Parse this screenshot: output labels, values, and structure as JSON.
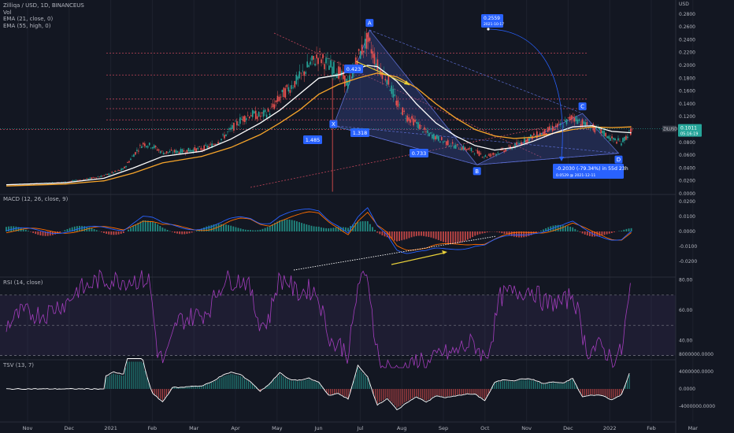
{
  "header": {
    "symbol_line": "Zilliqa / USD, 1D, BINANCEUS",
    "vol_label": "Vol",
    "ema21_label": "EMA (21, close, 0)",
    "ema55_label": "EMA (55, high, 0)",
    "currency": "USD"
  },
  "colors": {
    "background": "#131722",
    "candle_up": "#26a69a",
    "candle_down": "#ef5350",
    "ema21": "#ffffff",
    "ema55": "#f7a52a",
    "pattern_fill": "#3b4d9e",
    "pattern_line": "#5b6cd0",
    "macd_line": "#2962ff",
    "signal_line": "#ff6d00",
    "rsi_line": "#a33dbd",
    "tsv_line": "#ffffff",
    "label_bg": "#2962ff",
    "price_tag": "#26a69a",
    "arrow_yellow": "#e8d03a"
  },
  "chart_data": {
    "type": "candlestick",
    "title": "Zilliqa / USD, 1D, BINANCEUS",
    "x_ticks": [
      "Nov",
      "Dec",
      "2021",
      "Feb",
      "Mar",
      "Apr",
      "May",
      "Jun",
      "Jul",
      "Aug",
      "Sep",
      "Oct",
      "Nov",
      "Dec",
      "2022",
      "Feb",
      "Mar"
    ],
    "price_axis": {
      "ticks": [
        0.28,
        0.26,
        0.24,
        0.22,
        0.2,
        0.18,
        0.16,
        0.14,
        0.12,
        0.1,
        0.08,
        0.06,
        0.04,
        0.02,
        0.0
      ],
      "tick_labels": [
        "0.2800",
        "0.2600",
        "0.2400",
        "0.2200",
        "0.2000",
        "0.1800",
        "0.1600",
        "0.1400",
        "0.1200",
        "0.1000",
        "0.0800",
        "0.0600",
        "0.0400",
        "0.0200",
        "0.0000"
      ],
      "ylim": [
        0,
        0.3
      ]
    },
    "current_price": {
      "value": "0.1011",
      "countdown": "05:16:19",
      "symbol_tag": "ZILUSD"
    },
    "approx_closes": [
      [
        0,
        0.014
      ],
      [
        2,
        0.015
      ],
      [
        4,
        0.016
      ],
      [
        6,
        0.018
      ],
      [
        8,
        0.022
      ],
      [
        10,
        0.028
      ],
      [
        12,
        0.038
      ],
      [
        13,
        0.06
      ],
      [
        14,
        0.078
      ],
      [
        15,
        0.074
      ],
      [
        16,
        0.064
      ],
      [
        18,
        0.066
      ],
      [
        20,
        0.07
      ],
      [
        21,
        0.075
      ],
      [
        22,
        0.085
      ],
      [
        23,
        0.1
      ],
      [
        24,
        0.115
      ],
      [
        25,
        0.124
      ],
      [
        26,
        0.121
      ],
      [
        27,
        0.128
      ],
      [
        28,
        0.15
      ],
      [
        29,
        0.165
      ],
      [
        30,
        0.18
      ],
      [
        31,
        0.2
      ],
      [
        32,
        0.214
      ],
      [
        33,
        0.2
      ],
      [
        34,
        0.19
      ],
      [
        35,
        0.17
      ],
      [
        36,
        0.212
      ],
      [
        37,
        0.24
      ],
      [
        38,
        0.2
      ],
      [
        39,
        0.18
      ],
      [
        40,
        0.14
      ],
      [
        41,
        0.12
      ],
      [
        42,
        0.11
      ],
      [
        43,
        0.095
      ],
      [
        44,
        0.088
      ],
      [
        45,
        0.08
      ],
      [
        46,
        0.074
      ],
      [
        47,
        0.07
      ],
      [
        48,
        0.066
      ],
      [
        49,
        0.058
      ],
      [
        50,
        0.062
      ],
      [
        51,
        0.068
      ],
      [
        52,
        0.074
      ],
      [
        53,
        0.082
      ],
      [
        54,
        0.09
      ],
      [
        55,
        0.095
      ],
      [
        56,
        0.102
      ],
      [
        57,
        0.108
      ],
      [
        58,
        0.12
      ],
      [
        59,
        0.11
      ],
      [
        60,
        0.103
      ],
      [
        61,
        0.096
      ],
      [
        62,
        0.085
      ],
      [
        63,
        0.08
      ],
      [
        64,
        0.098
      ]
    ],
    "approx_ema21": [
      [
        0,
        0.014
      ],
      [
        6,
        0.017
      ],
      [
        10,
        0.024
      ],
      [
        13,
        0.04
      ],
      [
        16,
        0.058
      ],
      [
        20,
        0.066
      ],
      [
        23,
        0.085
      ],
      [
        26,
        0.11
      ],
      [
        28,
        0.13
      ],
      [
        30,
        0.155
      ],
      [
        32,
        0.18
      ],
      [
        34,
        0.185
      ],
      [
        36,
        0.195
      ],
      [
        37,
        0.2
      ],
      [
        38,
        0.198
      ],
      [
        40,
        0.175
      ],
      [
        42,
        0.14
      ],
      [
        44,
        0.11
      ],
      [
        46,
        0.09
      ],
      [
        48,
        0.075
      ],
      [
        50,
        0.068
      ],
      [
        52,
        0.072
      ],
      [
        54,
        0.082
      ],
      [
        56,
        0.094
      ],
      [
        58,
        0.104
      ],
      [
        60,
        0.106
      ],
      [
        62,
        0.097
      ],
      [
        64,
        0.095
      ]
    ],
    "approx_ema55": [
      [
        0,
        0.012
      ],
      [
        6,
        0.015
      ],
      [
        10,
        0.02
      ],
      [
        13,
        0.032
      ],
      [
        16,
        0.048
      ],
      [
        20,
        0.058
      ],
      [
        23,
        0.072
      ],
      [
        26,
        0.092
      ],
      [
        28,
        0.11
      ],
      [
        30,
        0.13
      ],
      [
        32,
        0.155
      ],
      [
        34,
        0.17
      ],
      [
        36,
        0.18
      ],
      [
        38,
        0.188
      ],
      [
        40,
        0.182
      ],
      [
        42,
        0.165
      ],
      [
        44,
        0.14
      ],
      [
        46,
        0.118
      ],
      [
        48,
        0.1
      ],
      [
        50,
        0.09
      ],
      [
        52,
        0.086
      ],
      [
        54,
        0.088
      ],
      [
        56,
        0.094
      ],
      [
        58,
        0.1
      ],
      [
        60,
        0.104
      ],
      [
        62,
        0.103
      ],
      [
        64,
        0.104
      ]
    ],
    "harmonic_points": [
      {
        "name": "X",
        "t": 33.5,
        "p": 0.106
      },
      {
        "name": "A",
        "t": 37.2,
        "p": 0.255
      },
      {
        "name": "B",
        "t": 48.2,
        "p": 0.045
      },
      {
        "name": "C",
        "t": 59.0,
        "p": 0.125
      },
      {
        "name": "D",
        "t": 62.7,
        "p": 0.063
      }
    ],
    "ratio_labels": [
      "0.423",
      "1.485",
      "1.318",
      "0.733"
    ],
    "horizontal_levels": [
      0.219,
      0.185,
      0.1475,
      0.1325,
      0.115,
      0.1
    ],
    "forecast": {
      "target_value": "0.2559",
      "target_date": "2021-10-17",
      "measure_text": "-0.2030 (-79.34%) in 55d 23h",
      "measure_sub": "0.0529 @ 2021-12-11"
    },
    "macd": {
      "title": "MACD (12, 26, close, 9)",
      "ticks": [
        0.02,
        0.01,
        0.0,
        -0.01,
        -0.02
      ],
      "tick_labels": [
        "0.0200",
        "0.0100",
        "0.0000",
        "-0.0100",
        "-0.0200"
      ]
    },
    "rsi": {
      "title": "RSI (14, close)",
      "ticks": [
        80,
        60,
        40
      ],
      "tick_labels": [
        "80.00",
        "60.00",
        "40.00"
      ],
      "band": [
        70,
        30
      ]
    },
    "tsv": {
      "title": "TSV (13, 7)",
      "ticks": [
        8000000,
        4000000,
        0,
        -4000000
      ],
      "tick_labels": [
        "8000000.0000",
        "4000000.0000",
        "0.0000",
        "-4000000.0000"
      ]
    }
  }
}
